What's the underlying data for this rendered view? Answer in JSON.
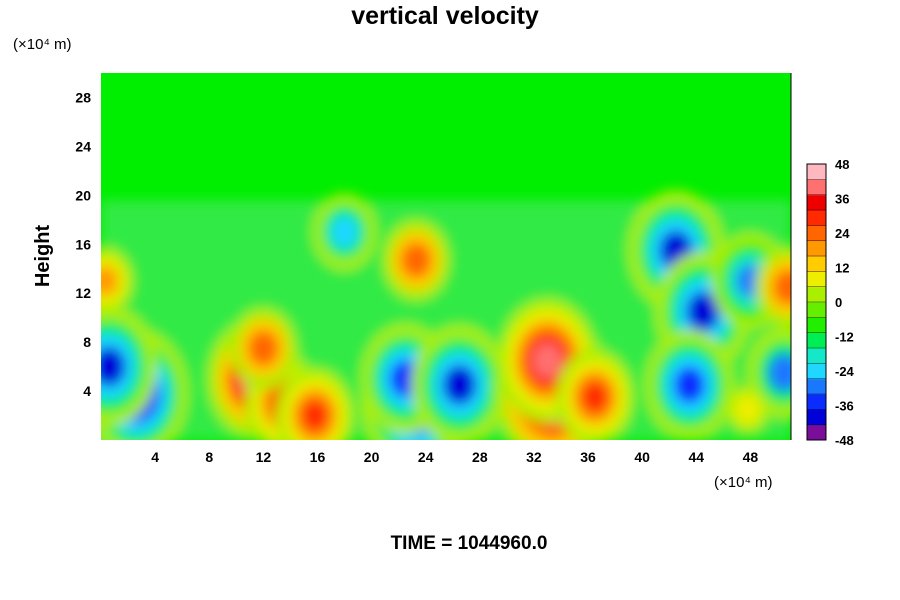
{
  "chart_data": {
    "type": "heatmap",
    "title": "vertical velocity",
    "ylabel": "Height",
    "xlabel": "",
    "x_unit": "(×10⁴ m)",
    "y_unit": "(×10⁴ m)",
    "footer": "TIME = 1044960.0",
    "xlim": [
      0,
      51
    ],
    "ylim": [
      0,
      30
    ],
    "xticks": [
      "4",
      "8",
      "12",
      "16",
      "20",
      "24",
      "28",
      "32",
      "36",
      "40",
      "44",
      "48"
    ],
    "xtick_values": [
      4,
      8,
      12,
      16,
      20,
      24,
      28,
      32,
      36,
      40,
      44,
      48
    ],
    "yticks": [
      "4",
      "8",
      "12",
      "16",
      "20",
      "24",
      "28"
    ],
    "ytick_values": [
      4,
      8,
      12,
      16,
      20,
      24,
      28
    ],
    "colorbar": {
      "range": [
        -48,
        48
      ],
      "labels": [
        "48",
        "36",
        "24",
        "12",
        "0",
        "-12",
        "-24",
        "-36",
        "-48"
      ],
      "label_values": [
        48,
        36,
        24,
        12,
        0,
        -12,
        -24,
        -36,
        -48
      ],
      "colors_low_to_high": [
        "#7a0d9a",
        "#0000d8",
        "#0a2cff",
        "#1a78ff",
        "#1fd7ff",
        "#14e8c8",
        "#00ee55",
        "#22ee00",
        "#66ee00",
        "#aaee00",
        "#eeee00",
        "#ffcc00",
        "#ff9900",
        "#ff6600",
        "#ff2a00",
        "#ee0000",
        "#ff7070",
        "#ffb8c0"
      ]
    },
    "features": [
      {
        "x": 1.5,
        "y": 3.5,
        "value": -50
      },
      {
        "x": 2.6,
        "y": 3.8,
        "value": -44
      },
      {
        "x": 0.6,
        "y": 6.0,
        "value": -40
      },
      {
        "x": 11.4,
        "y": 5.0,
        "value": 40
      },
      {
        "x": 13.5,
        "y": 3.0,
        "value": 30
      },
      {
        "x": 15.8,
        "y": 2.0,
        "value": 30
      },
      {
        "x": 12.0,
        "y": 7.5,
        "value": 24
      },
      {
        "x": 23.3,
        "y": 3.0,
        "value": -48
      },
      {
        "x": 22.5,
        "y": 5.0,
        "value": -36
      },
      {
        "x": 26.5,
        "y": 4.5,
        "value": -40
      },
      {
        "x": 23.3,
        "y": 14.7,
        "value": 24
      },
      {
        "x": 33.4,
        "y": 4.0,
        "value": 52
      },
      {
        "x": 33.0,
        "y": 6.5,
        "value": 42
      },
      {
        "x": 36.5,
        "y": 3.5,
        "value": 30
      },
      {
        "x": 42.5,
        "y": 15.5,
        "value": -40
      },
      {
        "x": 44.5,
        "y": 10.5,
        "value": -40
      },
      {
        "x": 43.5,
        "y": 4.5,
        "value": -36
      },
      {
        "x": 48.0,
        "y": 13.0,
        "value": -30
      },
      {
        "x": 50.5,
        "y": 5.5,
        "value": -28
      },
      {
        "x": 18.0,
        "y": 17.0,
        "value": -22
      },
      {
        "x": 50.8,
        "y": 12.5,
        "value": 24
      },
      {
        "x": 0.3,
        "y": 13.0,
        "value": 18
      },
      {
        "x": 47.8,
        "y": 2.5,
        "value": 10
      }
    ]
  }
}
